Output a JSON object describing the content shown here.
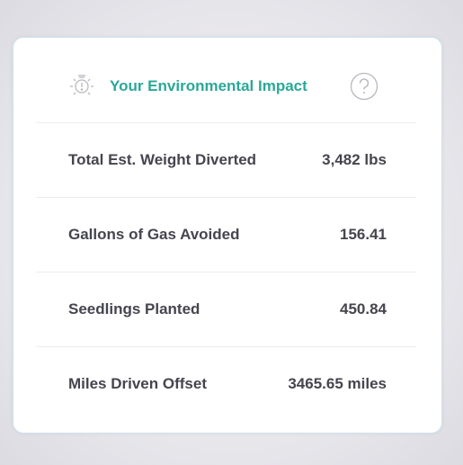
{
  "header": {
    "title": "Your Environmental Impact"
  },
  "rows": [
    {
      "label": "Total Est. Weight Diverted",
      "value": "3,482 lbs"
    },
    {
      "label": "Gallons of Gas Avoided",
      "value": "156.41"
    },
    {
      "label": "Seedlings Planted",
      "value": "450.84"
    },
    {
      "label": "Miles Driven Offset",
      "value": "3465.65 miles"
    }
  ]
}
